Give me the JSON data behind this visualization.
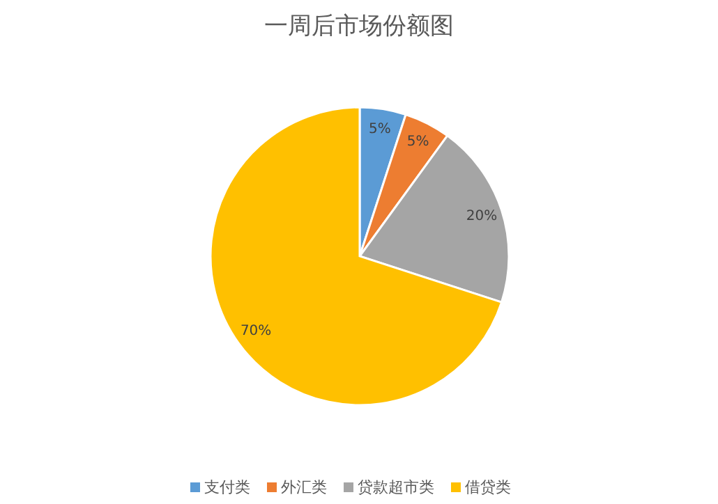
{
  "chart_data": {
    "type": "pie",
    "title": "一周后市场份额图",
    "categories": [
      "支付类",
      "外汇类",
      "贷款超市类",
      "借贷类"
    ],
    "values": [
      5,
      5,
      20,
      70
    ],
    "colors": [
      "#5b9bd5",
      "#ed7d31",
      "#a5a5a5",
      "#ffc000"
    ],
    "value_labels": [
      "5%",
      "5%",
      "20%",
      "70%"
    ],
    "legend": "bottom"
  }
}
